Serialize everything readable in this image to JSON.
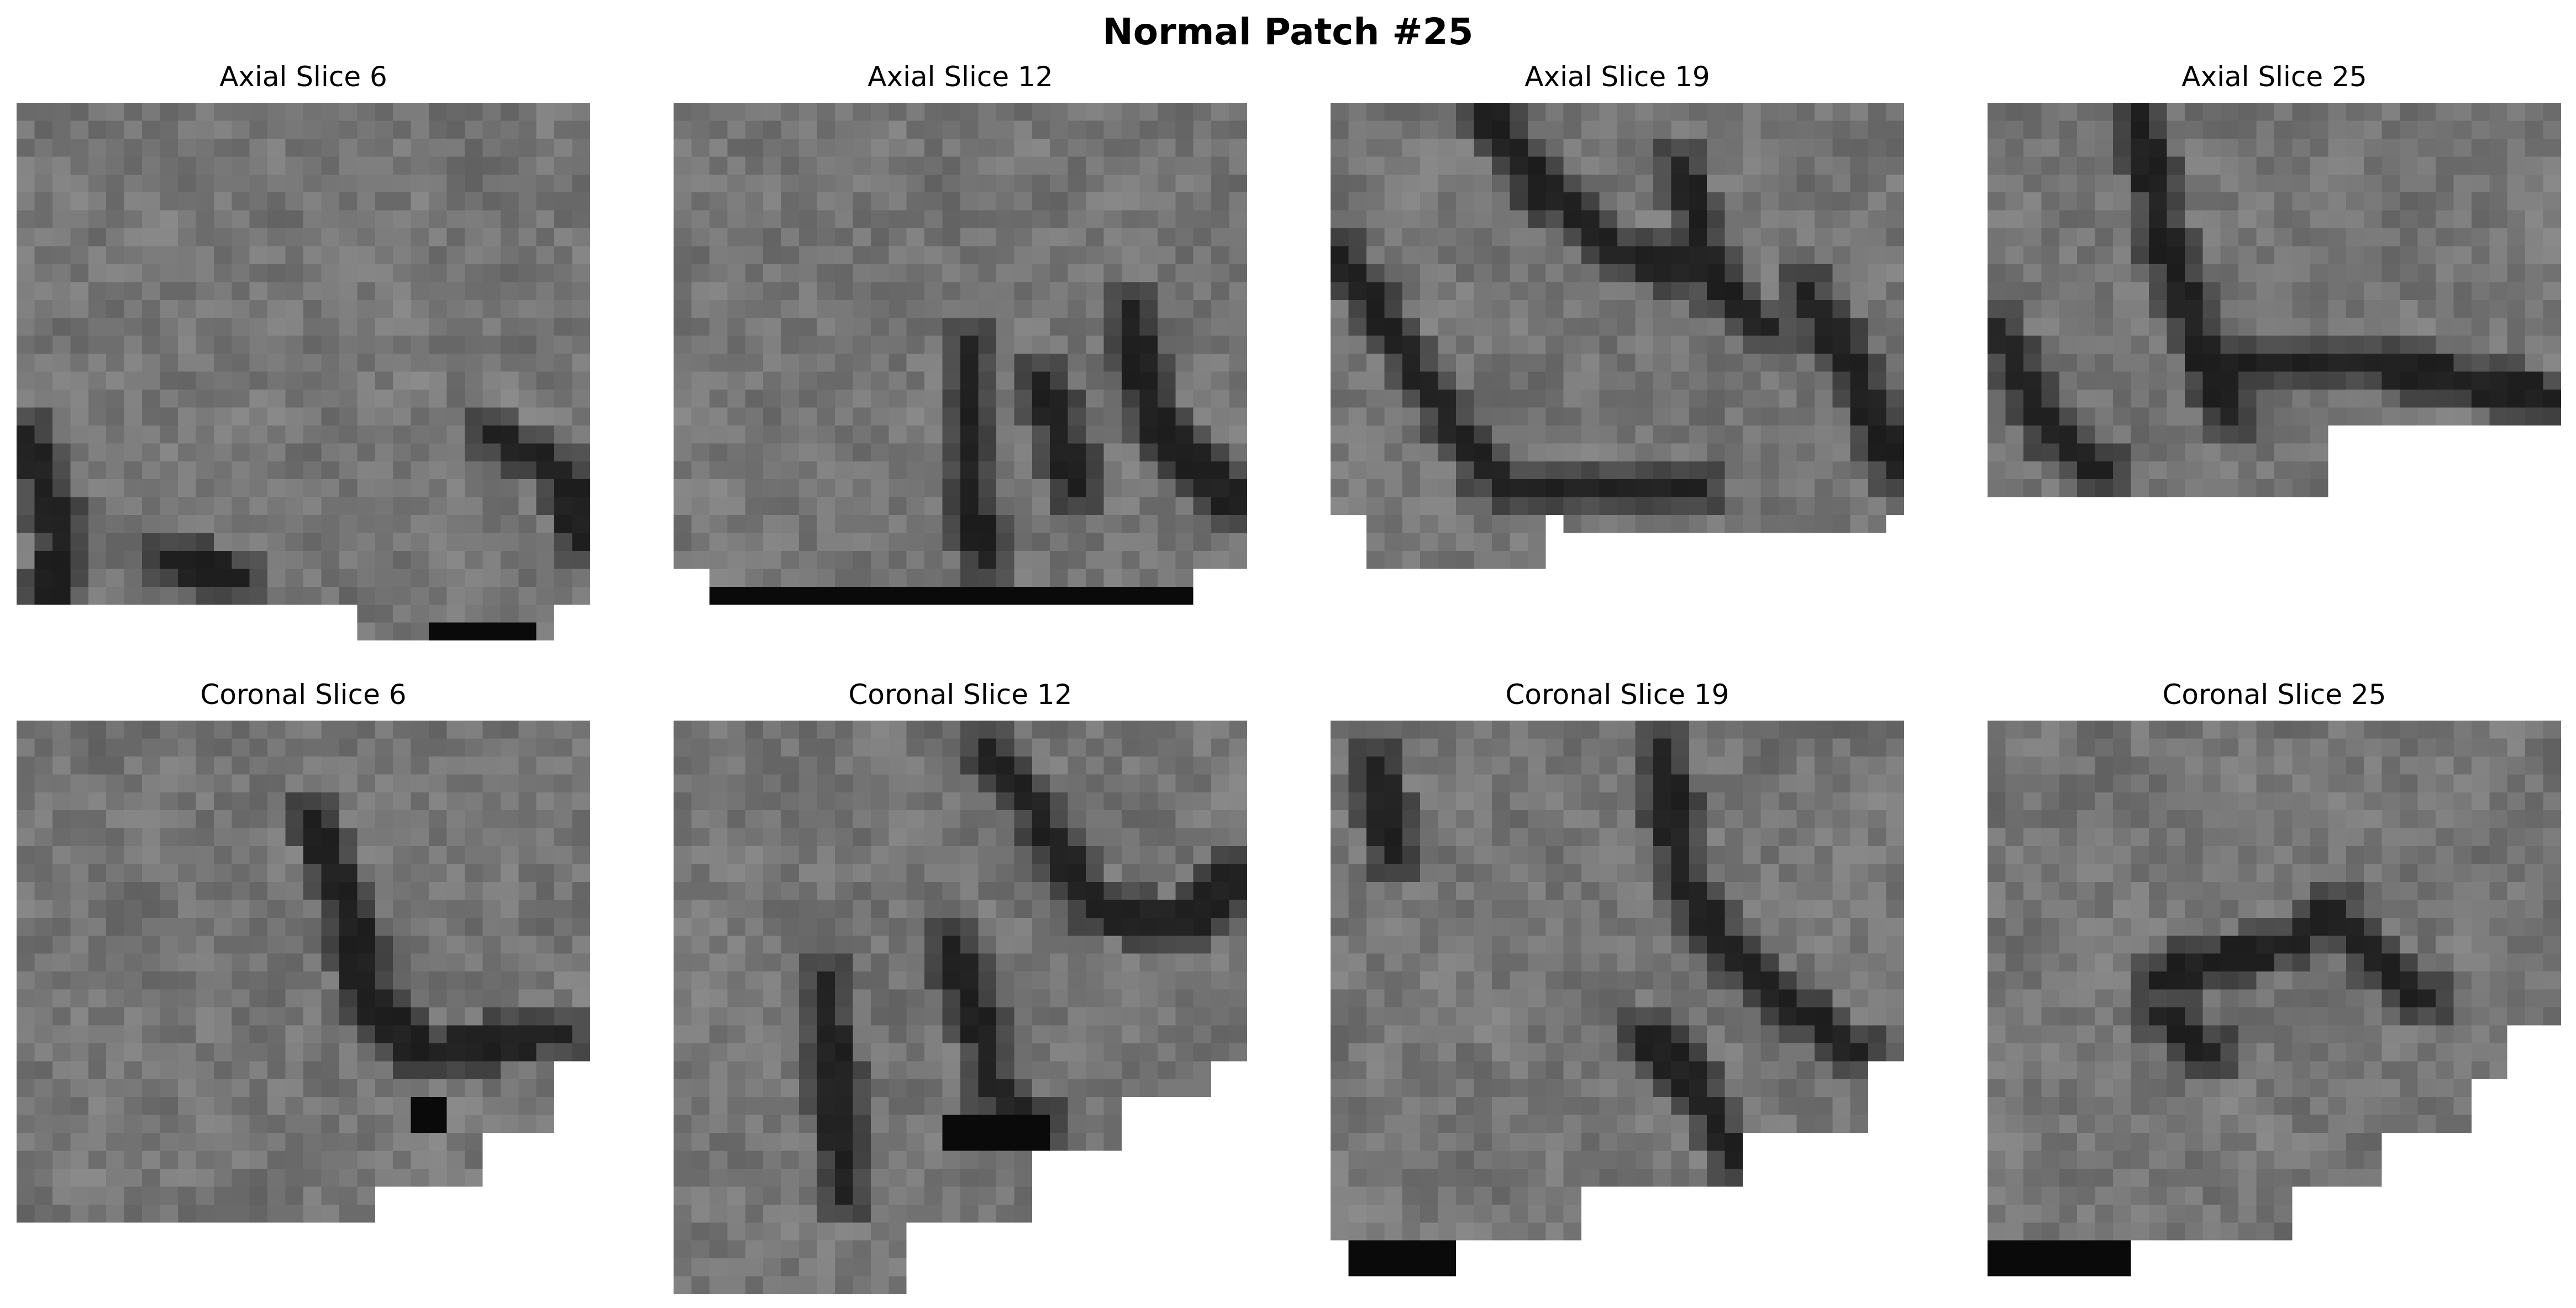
{
  "figure": {
    "title": "Normal Patch #25"
  },
  "panels": [
    {
      "title": "Axial Slice 6",
      "view": "axial",
      "slice": 6,
      "cmap": "gray"
    },
    {
      "title": "Axial Slice 12",
      "view": "axial",
      "slice": 12,
      "cmap": "gray"
    },
    {
      "title": "Axial Slice 19",
      "view": "axial",
      "slice": 19,
      "cmap": "gray"
    },
    {
      "title": "Axial Slice 25",
      "view": "axial",
      "slice": 25,
      "cmap": "gray"
    },
    {
      "title": "Coronal Slice 6",
      "view": "coronal",
      "slice": 6,
      "cmap": "gray"
    },
    {
      "title": "Coronal Slice 12",
      "view": "coronal",
      "slice": 12,
      "cmap": "gray"
    },
    {
      "title": "Coronal Slice 19",
      "view": "coronal",
      "slice": 19,
      "cmap": "gray"
    },
    {
      "title": "Coronal Slice 25",
      "view": "coronal",
      "slice": 25,
      "cmap": "gray"
    }
  ]
}
